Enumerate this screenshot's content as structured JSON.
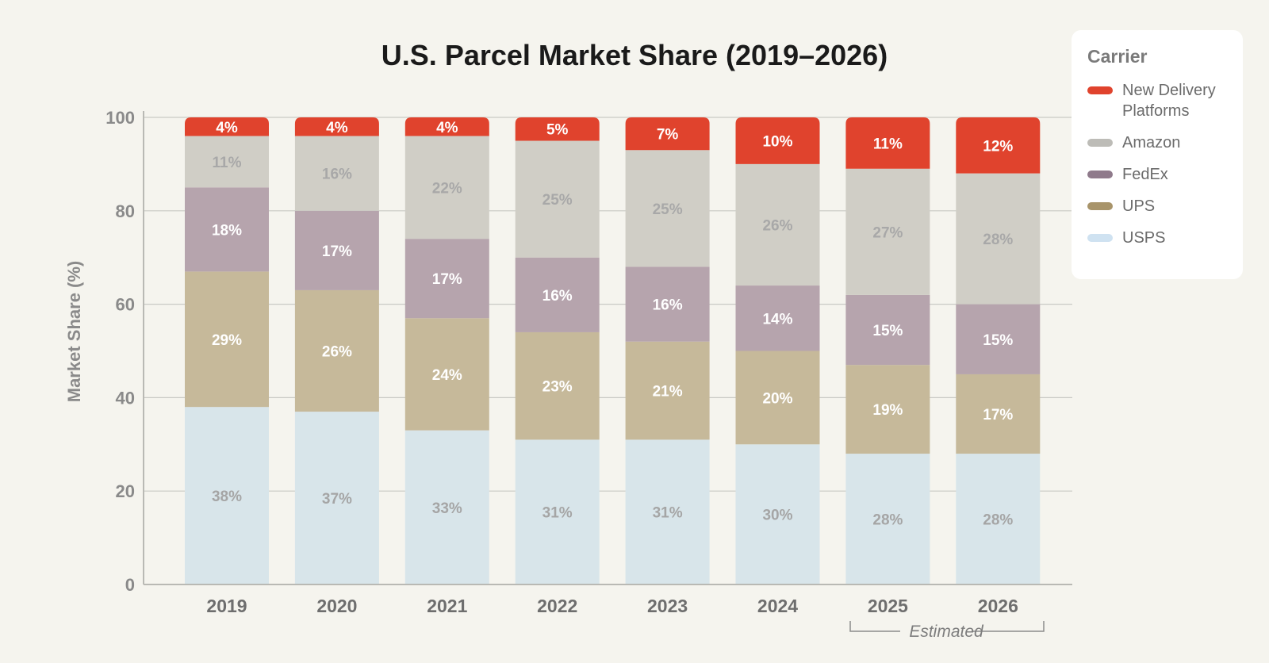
{
  "chart_data": {
    "type": "bar",
    "stacked": true,
    "title": "U.S. Parcel Market Share (2019–2026)",
    "xlabel": "",
    "ylabel": "Market Share (%)",
    "ylim": [
      0,
      100
    ],
    "yticks": [
      0,
      20,
      40,
      60,
      80,
      100
    ],
    "grid": true,
    "categories": [
      "2019",
      "2020",
      "2021",
      "2022",
      "2023",
      "2024",
      "2025",
      "2026"
    ],
    "series": [
      {
        "name": "USPS",
        "color": "#d8e5ea",
        "label_color": "#a5a5a5",
        "values": [
          38,
          37,
          33,
          31,
          31,
          30,
          28,
          28
        ]
      },
      {
        "name": "UPS",
        "color": "#c6b99a",
        "label_color": "#ffffff",
        "values": [
          29,
          26,
          24,
          23,
          21,
          20,
          19,
          17
        ]
      },
      {
        "name": "FedEx",
        "color": "#b6a4ad",
        "label_color": "#ffffff",
        "values": [
          18,
          17,
          17,
          16,
          16,
          14,
          15,
          15
        ]
      },
      {
        "name": "Amazon",
        "color": "#d0cec6",
        "label_color": "#a8a8a8",
        "values": [
          11,
          16,
          22,
          25,
          25,
          26,
          27,
          28
        ]
      },
      {
        "name": "New Delivery Platforms",
        "color": "#e0432d",
        "label_color": "#ffffff",
        "values": [
          4,
          4,
          4,
          5,
          7,
          10,
          11,
          12
        ]
      }
    ],
    "annotation": {
      "text": "Estimated",
      "categories": [
        "2025",
        "2026"
      ]
    }
  },
  "legend": {
    "title": "Carrier",
    "items": [
      {
        "label": "New Delivery Platforms",
        "color": "#e0432d"
      },
      {
        "label": "Amazon",
        "color": "#bdbcb7"
      },
      {
        "label": "FedEx",
        "color": "#8f7a8b"
      },
      {
        "label": "UPS",
        "color": "#a8946a"
      },
      {
        "label": "USPS",
        "color": "#cfe2f1"
      }
    ]
  }
}
